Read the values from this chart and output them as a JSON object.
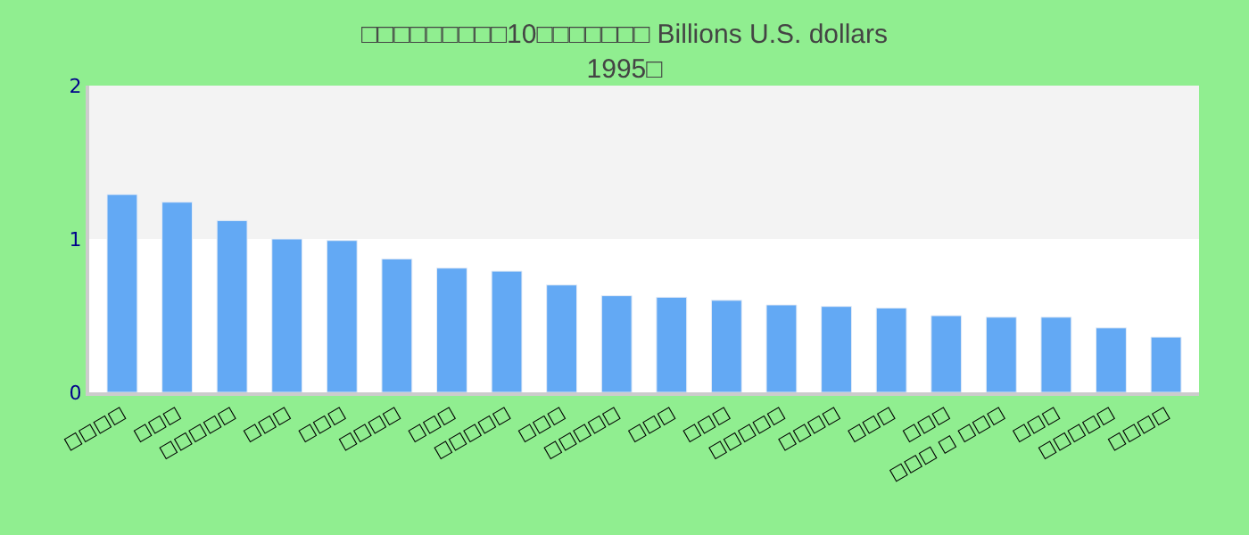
{
  "chart_data": {
    "type": "bar",
    "title": "□□□□□□□□□10□□□□□□□ Billions U.S. dollars\n1995□",
    "categories": [
      "□□□□",
      "□□□",
      "□□□□□",
      "□□□",
      "□□□",
      "□□□□",
      "□□□",
      "□□□□□",
      "□□□",
      "□□□□□",
      "□□□",
      "□□□",
      "□□□□□",
      "□□□□",
      "□□□",
      "□□□",
      "□□□ □ □□□",
      "□□□",
      "□□□□□",
      "□□□□"
    ],
    "values": [
      1.29,
      1.24,
      1.12,
      1.0,
      0.99,
      0.87,
      0.81,
      0.79,
      0.7,
      0.63,
      0.62,
      0.6,
      0.57,
      0.56,
      0.55,
      0.5,
      0.49,
      0.49,
      0.42,
      0.36
    ],
    "color": "#63a9f4",
    "ylim": [
      0,
      2
    ],
    "yticks": [
      0,
      1,
      2
    ],
    "grid": false,
    "legend": false,
    "bands": [
      {
        "axis": "y",
        "from": 1,
        "to": 2,
        "color": "#f3f3f3"
      }
    ]
  }
}
